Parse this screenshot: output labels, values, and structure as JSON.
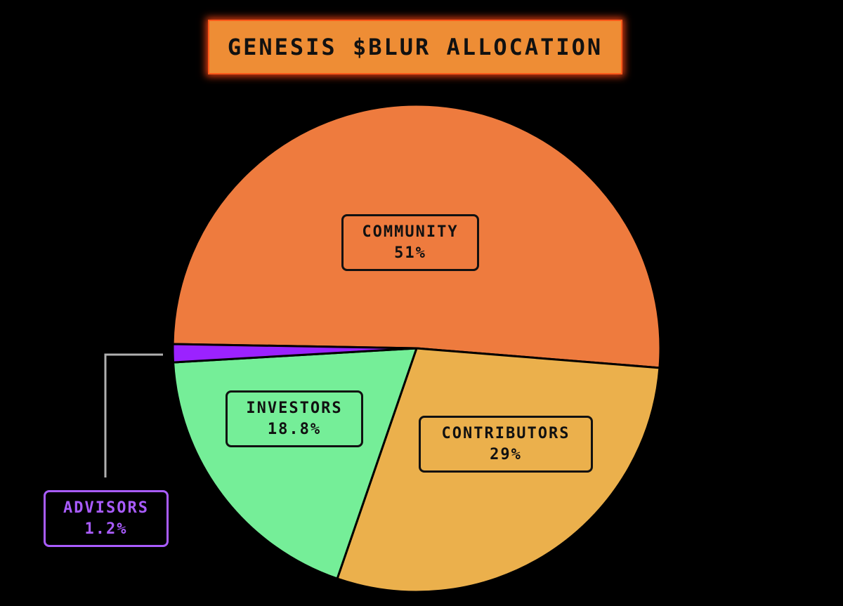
{
  "title": "GENESIS $BLUR ALLOCATION",
  "chart_data": {
    "type": "pie",
    "title": "GENESIS $BLUR ALLOCATION",
    "slices": [
      {
        "label": "COMMUNITY",
        "value": 51,
        "display": "51%",
        "color": "#ee7b3e"
      },
      {
        "label": "CONTRIBUTORS",
        "value": 29,
        "display": "29%",
        "color": "#ebb04c"
      },
      {
        "label": "INVESTORS",
        "value": 18.8,
        "display": "18.8%",
        "color": "#75ee98"
      },
      {
        "label": "ADVISORS",
        "value": 1.2,
        "display": "1.2%",
        "color": "#9b22ff"
      }
    ],
    "legend": "none"
  }
}
